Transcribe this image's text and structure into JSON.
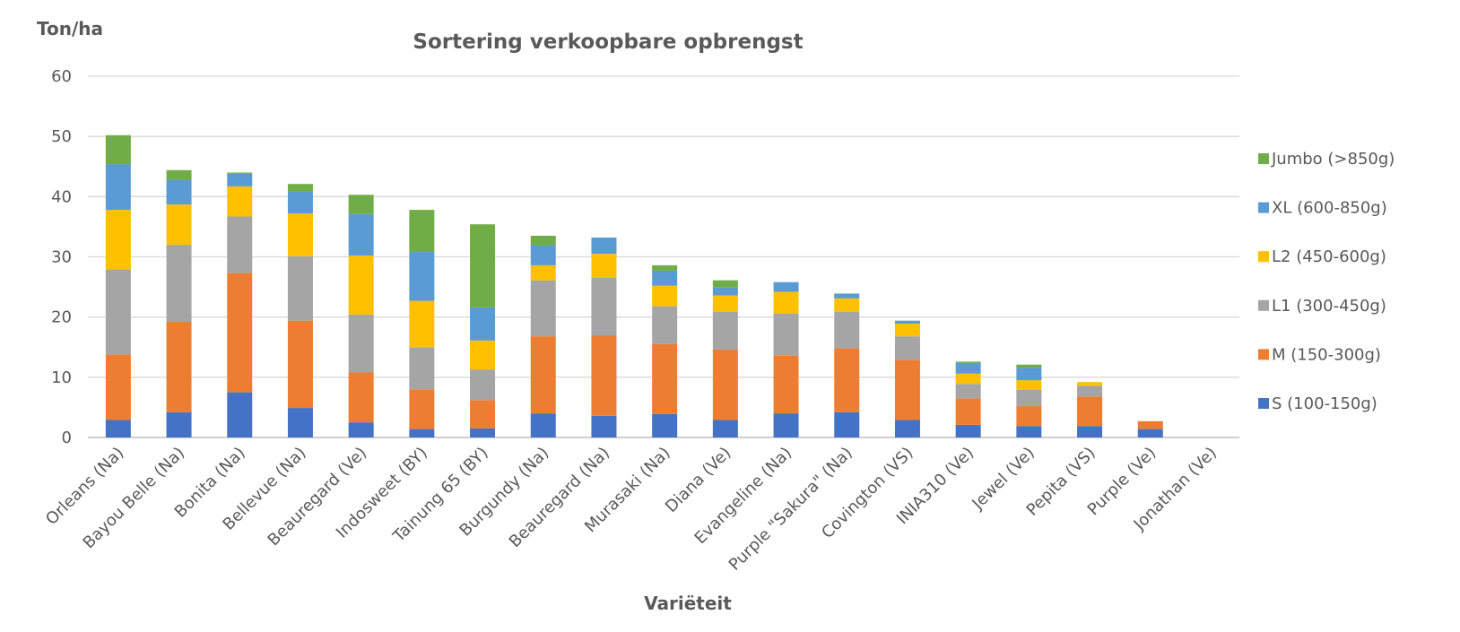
{
  "chart_data": {
    "type": "bar",
    "stacked": true,
    "title": "Sortering verkoopbare opbrengst",
    "xlabel": "Variëteit",
    "ylabel": "Ton/ha",
    "ylim": [
      0,
      60
    ],
    "yticks": [
      0,
      10,
      20,
      30,
      40,
      50,
      60
    ],
    "grid": true,
    "legend_position": "right",
    "categories": [
      "Orleans (Na)",
      "Bayou Belle (Na)",
      "Bonita (Na)",
      "Bellevue (Na)",
      "Beauregard (Ve)",
      "Indosweet (BY)",
      "Tainung 65 (BY)",
      "Burgundy (Na)",
      "Beauregard (Na)",
      "Murasaki (Na)",
      "Diana (Ve)",
      "Evangeline (Na)",
      "Purple \"Sakura\" (Na)",
      "Covington (VS)",
      "INIA310 (Ve)",
      "Jewel (Ve)",
      "Pepita (VS)",
      "Purple (Ve)",
      "Jonathan (Ve)"
    ],
    "series": [
      {
        "name": "S (100-150g)",
        "color": "#4472c4",
        "values": [
          2.9,
          4.2,
          7.5,
          4.9,
          2.5,
          1.4,
          1.5,
          4.0,
          3.6,
          3.9,
          2.9,
          4.0,
          4.2,
          2.9,
          2.1,
          1.9,
          1.9,
          1.4,
          0
        ]
      },
      {
        "name": "M (150-300g)",
        "color": "#ed7d31",
        "values": [
          10.9,
          15.0,
          19.8,
          14.5,
          8.3,
          6.6,
          4.7,
          12.8,
          13.3,
          11.6,
          11.7,
          9.6,
          10.6,
          10.0,
          4.4,
          3.3,
          4.9,
          1.3,
          0
        ]
      },
      {
        "name": "L1 (300-450g)",
        "color": "#a5a5a5",
        "values": [
          14.1,
          12.8,
          9.4,
          10.7,
          9.6,
          7.0,
          5.1,
          9.3,
          9.6,
          6.3,
          6.3,
          7.0,
          6.1,
          3.9,
          2.4,
          2.7,
          1.8,
          0,
          0
        ]
      },
      {
        "name": "L2 (450-600g)",
        "color": "#ffc000",
        "values": [
          9.9,
          6.7,
          5.0,
          7.1,
          9.8,
          7.7,
          4.8,
          2.5,
          4.0,
          3.4,
          2.7,
          3.6,
          2.2,
          2.1,
          1.7,
          1.6,
          0.6,
          0,
          0
        ]
      },
      {
        "name": "XL (600-850g)",
        "color": "#5b9bd5",
        "values": [
          7.6,
          4.1,
          2.1,
          3.6,
          6.9,
          8.1,
          5.5,
          3.4,
          2.7,
          2.5,
          1.3,
          1.6,
          0.8,
          0.5,
          1.8,
          2.1,
          0,
          0,
          0
        ]
      },
      {
        "name": "Jumbo (>850g)",
        "color": "#70ad47",
        "values": [
          4.8,
          1.6,
          0.2,
          1.3,
          3.2,
          7.0,
          13.8,
          1.5,
          0,
          0.9,
          1.2,
          0,
          0,
          0,
          0.2,
          0.5,
          0,
          0,
          0
        ]
      }
    ]
  }
}
